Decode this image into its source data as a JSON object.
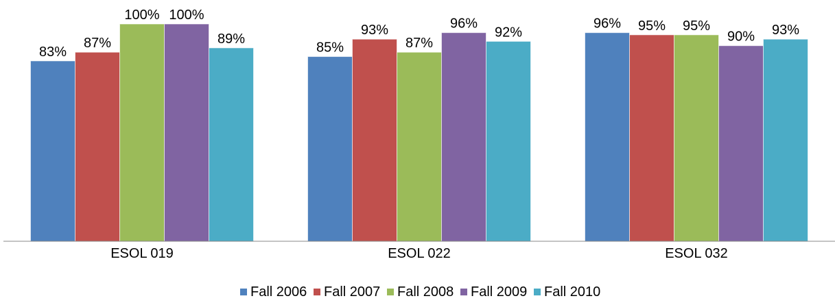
{
  "chart_data": {
    "type": "bar",
    "categories": [
      "ESOL 019",
      "ESOL 022",
      "ESOL 032"
    ],
    "series": [
      {
        "name": "Fall 2006",
        "color": "#4f81bd",
        "values": [
          83,
          85,
          96
        ],
        "value_labels": [
          "83%",
          "85%",
          "96%"
        ]
      },
      {
        "name": "Fall 2007",
        "color": "#c0504d",
        "values": [
          87,
          93,
          95
        ],
        "value_labels": [
          "87%",
          "93%",
          "95%"
        ]
      },
      {
        "name": "Fall 2008",
        "color": "#9bbb59",
        "values": [
          100,
          87,
          95
        ],
        "value_labels": [
          "100%",
          "87%",
          "95%"
        ]
      },
      {
        "name": "Fall 2009",
        "color": "#8064a2",
        "values": [
          100,
          96,
          90
        ],
        "value_labels": [
          "100%",
          "96%",
          "90%"
        ]
      },
      {
        "name": "Fall 2010",
        "color": "#4bacc6",
        "values": [
          89,
          92,
          93
        ],
        "value_labels": [
          "89%",
          "92%",
          "93%"
        ]
      }
    ],
    "ylim": [
      0,
      100
    ],
    "legend": "bottom"
  }
}
